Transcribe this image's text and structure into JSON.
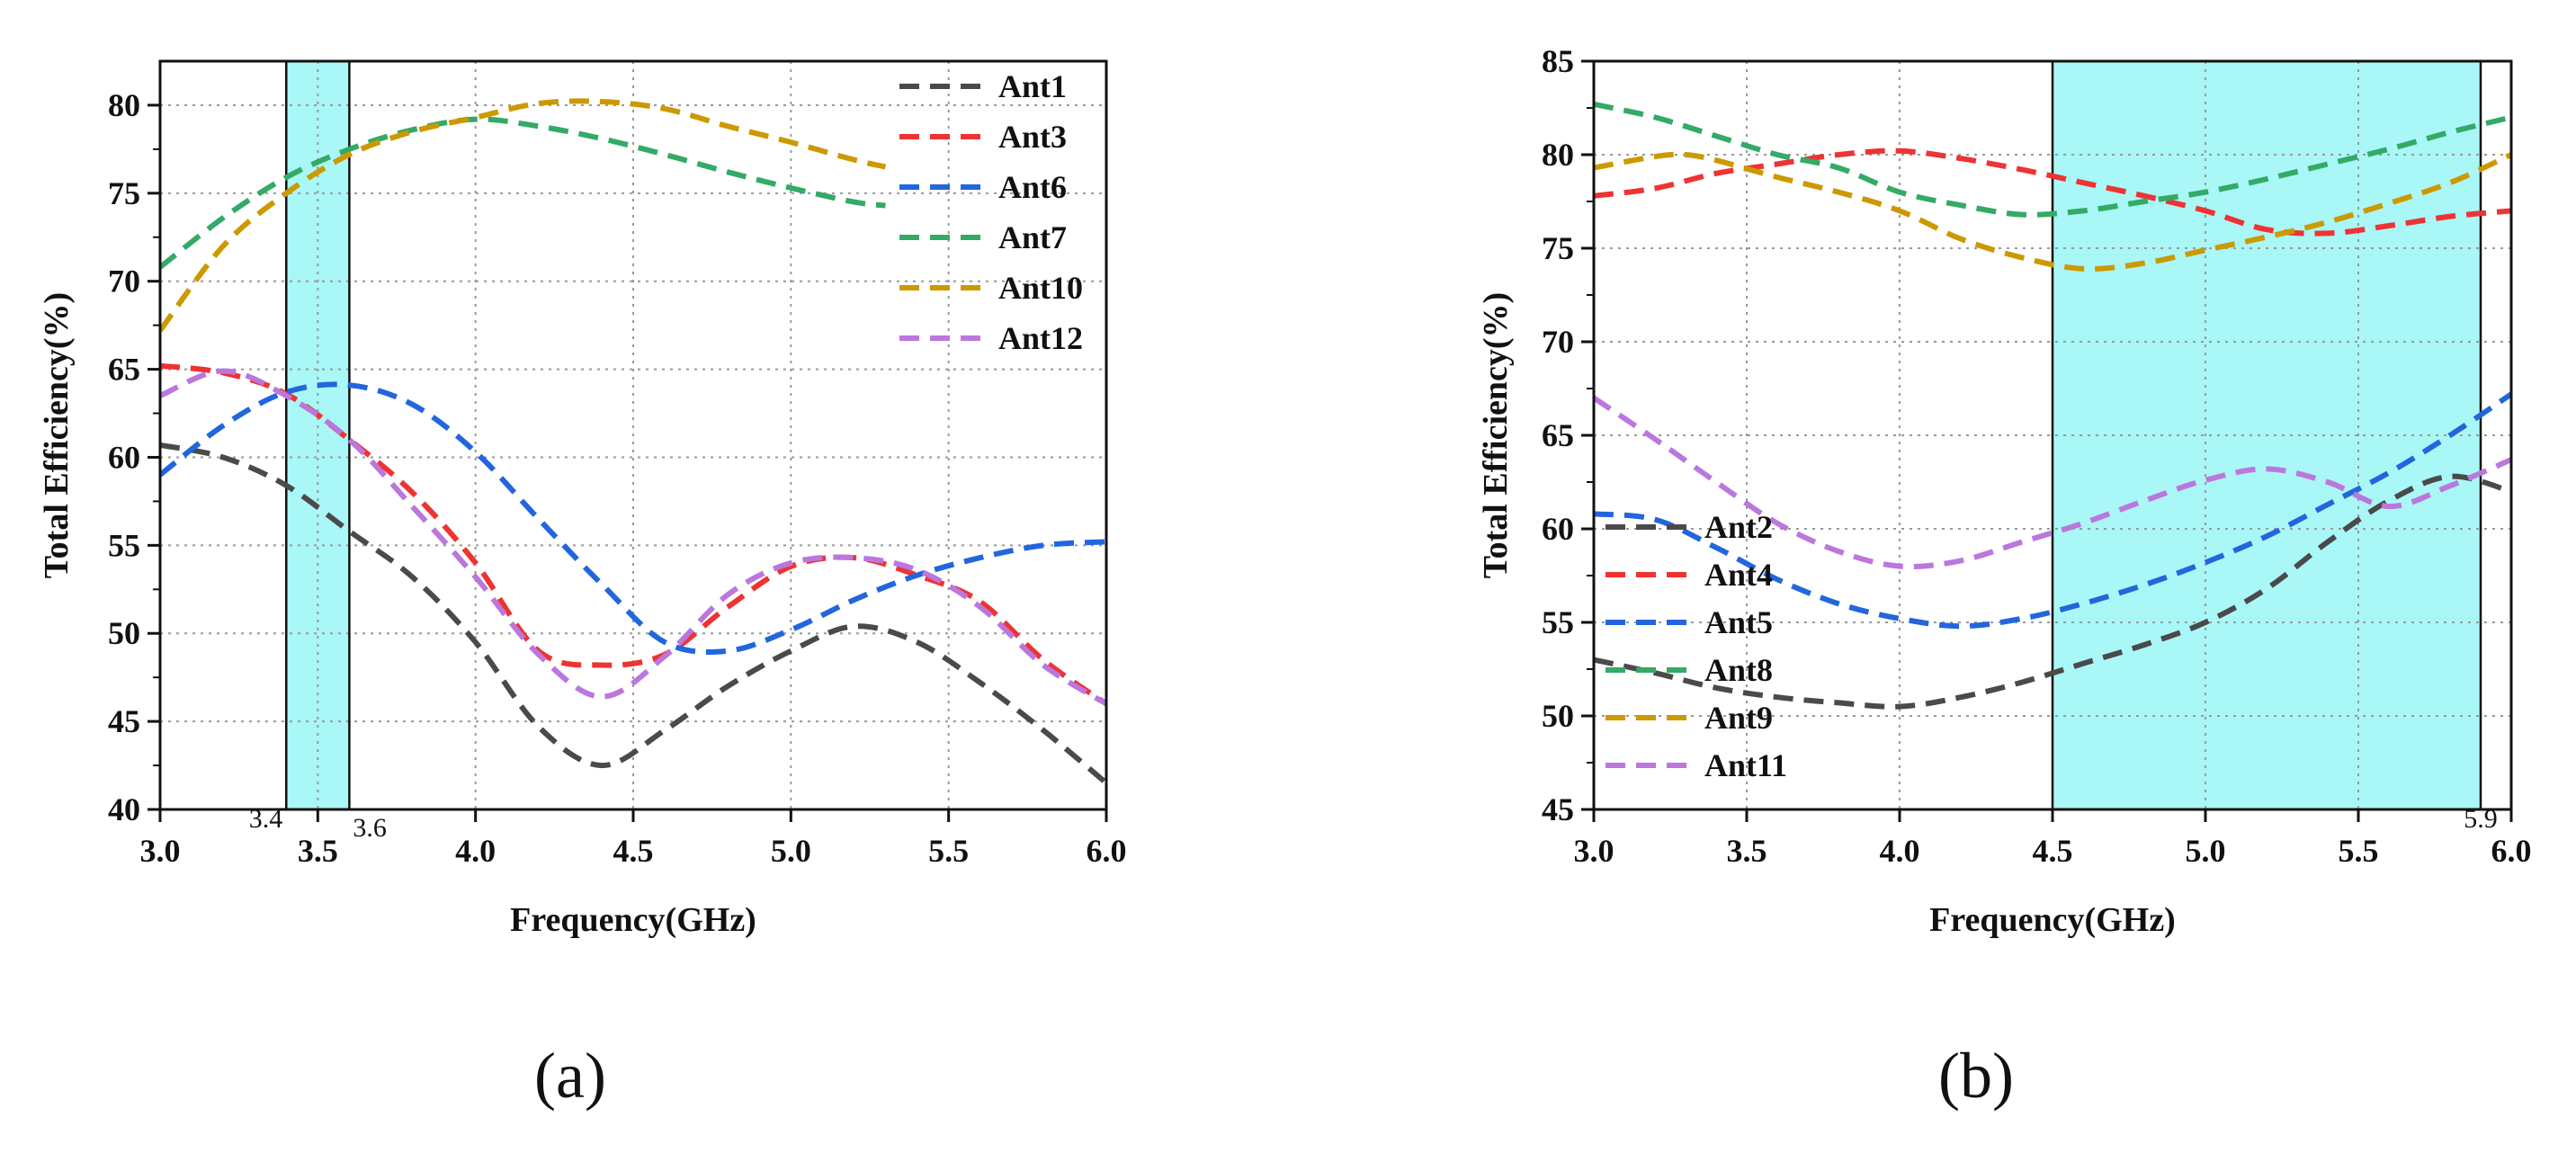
{
  "chart_data": [
    {
      "panel_label": "(a)",
      "type": "line",
      "xlabel": "Frequency(GHz)",
      "ylabel": "Total Efficiency(%)",
      "xlim": [
        3.0,
        6.0
      ],
      "ylim": [
        40,
        82.5
      ],
      "xticks": [
        "3.0",
        "3.5",
        "4.0",
        "4.5",
        "5.0",
        "5.5",
        "6.0"
      ],
      "yticks": [
        "40",
        "45",
        "50",
        "55",
        "60",
        "65",
        "70",
        "75",
        "80"
      ],
      "grid": true,
      "legend_position": "top-right",
      "band": [
        3.4,
        3.6
      ],
      "band_labels": [
        "3.4",
        "3.6"
      ],
      "band_color": "#aaf7f7",
      "series": [
        {
          "name": "Ant1",
          "color": "#4a4a4a",
          "x": [
            3.0,
            3.2,
            3.4,
            3.6,
            3.8,
            4.0,
            4.2,
            4.4,
            4.6,
            4.8,
            5.0,
            5.2,
            5.4,
            5.6,
            5.8,
            6.0
          ],
          "y": [
            60.7,
            60.0,
            58.4,
            55.8,
            53.2,
            49.5,
            44.7,
            42.5,
            44.5,
            47.0,
            49.0,
            50.4,
            49.5,
            47.2,
            44.5,
            41.5
          ]
        },
        {
          "name": "Ant3",
          "color": "#ee3333",
          "x": [
            3.0,
            3.2,
            3.4,
            3.6,
            3.8,
            4.0,
            4.2,
            4.4,
            4.6,
            4.8,
            5.0,
            5.2,
            5.4,
            5.6,
            5.8,
            6.0
          ],
          "y": [
            65.2,
            64.8,
            63.6,
            61.0,
            58.0,
            54.0,
            49.0,
            48.2,
            48.8,
            51.5,
            53.8,
            54.3,
            53.3,
            51.8,
            48.5,
            46.0
          ]
        },
        {
          "name": "Ant6",
          "color": "#2266dd",
          "x": [
            3.0,
            3.2,
            3.4,
            3.6,
            3.8,
            4.0,
            4.2,
            4.4,
            4.6,
            4.8,
            5.0,
            5.2,
            5.4,
            5.6,
            5.8,
            6.0
          ],
          "y": [
            59.0,
            61.8,
            63.7,
            64.1,
            63.0,
            60.3,
            56.5,
            52.8,
            49.5,
            49.0,
            50.2,
            51.9,
            53.3,
            54.3,
            55.0,
            55.2
          ]
        },
        {
          "name": "Ant7",
          "color": "#33aa66",
          "x": [
            3.0,
            3.2,
            3.4,
            3.6,
            3.8,
            4.0,
            4.2,
            4.4,
            4.6,
            4.8,
            5.0,
            5.2,
            5.3
          ],
          "y": [
            70.8,
            73.6,
            75.9,
            77.5,
            78.6,
            79.2,
            78.8,
            78.1,
            77.2,
            76.2,
            75.3,
            74.5,
            74.3
          ]
        },
        {
          "name": "Ant10",
          "color": "#cc9900",
          "x": [
            3.0,
            3.2,
            3.4,
            3.6,
            3.8,
            4.0,
            4.2,
            4.4,
            4.6,
            4.8,
            5.0,
            5.2,
            5.3
          ],
          "y": [
            67.2,
            72.0,
            75.0,
            77.2,
            78.5,
            79.3,
            80.1,
            80.2,
            79.8,
            78.8,
            77.9,
            76.9,
            76.5
          ]
        },
        {
          "name": "Ant12",
          "color": "#bb77dd",
          "x": [
            3.0,
            3.2,
            3.4,
            3.6,
            3.8,
            4.0,
            4.2,
            4.4,
            4.6,
            4.8,
            5.0,
            5.2,
            5.4,
            5.6,
            5.8,
            6.0
          ],
          "y": [
            63.5,
            64.9,
            63.5,
            61.0,
            57.2,
            53.2,
            48.8,
            46.4,
            48.7,
            52.2,
            54.0,
            54.3,
            53.6,
            51.5,
            48.2,
            46.0
          ]
        }
      ]
    },
    {
      "panel_label": "(b)",
      "type": "line",
      "xlabel": "Frequency(GHz)",
      "ylabel": "Total Efficiency(%)",
      "xlim": [
        3.0,
        6.0
      ],
      "ylim": [
        45,
        85
      ],
      "xticks": [
        "3.0",
        "3.5",
        "4.0",
        "4.5",
        "5.0",
        "5.5",
        "6.0"
      ],
      "yticks": [
        "45",
        "50",
        "55",
        "60",
        "65",
        "70",
        "75",
        "80",
        "85"
      ],
      "grid": true,
      "legend_position": "bottom-left",
      "band": [
        4.5,
        5.9
      ],
      "band_labels": [
        "5.9"
      ],
      "band_color": "#aaf7f7",
      "series": [
        {
          "name": "Ant2",
          "color": "#4a4a4a",
          "x": [
            3.0,
            3.2,
            3.4,
            3.6,
            3.8,
            4.0,
            4.2,
            4.4,
            4.6,
            4.8,
            5.0,
            5.2,
            5.4,
            5.6,
            5.8,
            6.0
          ],
          "y": [
            53.0,
            52.3,
            51.5,
            51.0,
            50.7,
            50.5,
            51.0,
            51.8,
            52.8,
            53.8,
            55.0,
            56.8,
            59.3,
            61.5,
            62.8,
            62.0
          ]
        },
        {
          "name": "Ant4",
          "color": "#ee3333",
          "x": [
            3.0,
            3.2,
            3.4,
            3.6,
            3.8,
            4.0,
            4.2,
            4.4,
            4.6,
            4.8,
            5.0,
            5.2,
            5.4,
            5.6,
            5.8,
            6.0
          ],
          "y": [
            77.8,
            78.2,
            79.0,
            79.5,
            80.0,
            80.2,
            79.8,
            79.2,
            78.5,
            77.8,
            77.0,
            76.0,
            75.8,
            76.2,
            76.7,
            77.0
          ]
        },
        {
          "name": "Ant5",
          "color": "#2266dd",
          "x": [
            3.0,
            3.2,
            3.4,
            3.6,
            3.8,
            4.0,
            4.2,
            4.4,
            4.6,
            4.8,
            5.0,
            5.2,
            5.4,
            5.6,
            5.8,
            6.0
          ],
          "y": [
            60.8,
            60.5,
            59.0,
            57.3,
            56.0,
            55.2,
            54.8,
            55.2,
            56.0,
            57.0,
            58.2,
            59.6,
            61.3,
            63.0,
            65.0,
            67.2
          ]
        },
        {
          "name": "Ant8",
          "color": "#33aa66",
          "x": [
            3.0,
            3.2,
            3.4,
            3.6,
            3.8,
            4.0,
            4.2,
            4.4,
            4.6,
            4.8,
            5.0,
            5.2,
            5.4,
            5.6,
            5.8,
            6.0
          ],
          "y": [
            82.7,
            82.0,
            81.0,
            80.0,
            79.3,
            78.0,
            77.3,
            76.8,
            77.0,
            77.5,
            78.0,
            78.7,
            79.5,
            80.3,
            81.2,
            82.0
          ]
        },
        {
          "name": "Ant9",
          "color": "#cc9900",
          "x": [
            3.0,
            3.2,
            3.3,
            3.4,
            3.6,
            3.8,
            4.0,
            4.2,
            4.4,
            4.6,
            4.8,
            5.0,
            5.2,
            5.4,
            5.6,
            5.8,
            6.0
          ],
          "y": [
            79.3,
            79.9,
            80.0,
            79.7,
            78.8,
            78.0,
            77.0,
            75.5,
            74.5,
            73.9,
            74.2,
            74.9,
            75.6,
            76.4,
            77.4,
            78.5,
            80.0
          ]
        },
        {
          "name": "Ant11",
          "color": "#bb77dd",
          "x": [
            3.0,
            3.2,
            3.4,
            3.6,
            3.8,
            4.0,
            4.2,
            4.4,
            4.6,
            4.8,
            5.0,
            5.2,
            5.4,
            5.6,
            5.8,
            6.0
          ],
          "y": [
            67.0,
            64.8,
            62.5,
            60.3,
            58.8,
            58.0,
            58.3,
            59.3,
            60.3,
            61.5,
            62.6,
            63.2,
            62.5,
            61.2,
            62.3,
            63.7
          ]
        }
      ]
    }
  ]
}
